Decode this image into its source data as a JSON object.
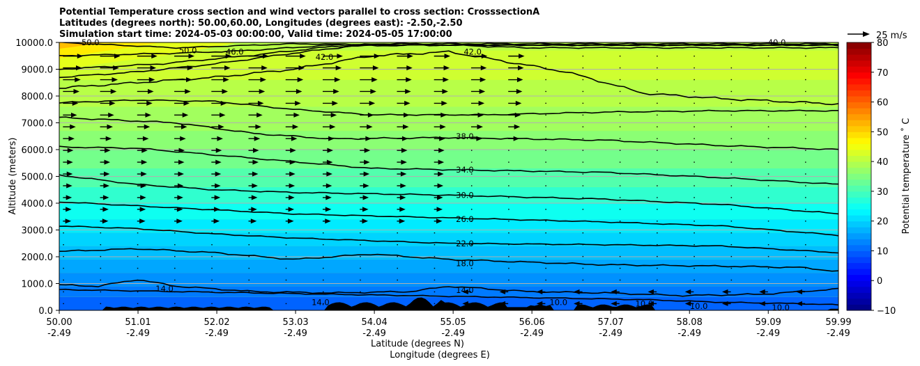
{
  "chart_data": {
    "type": "contour",
    "title_lines": [
      "Potential Temperature cross section and wind vectors parallel to cross section: CrosssectionA",
      "Latitudes (degrees north): 50.00,60.00, Longitudes (degrees east): -2.50,-2.50",
      "Simulation start time: 2024-05-03 00:00:00, Valid time: 2024-05-05 17:00:00"
    ],
    "xlabel_lat": "Latitude (degrees N)",
    "xlabel_lon": "Longitude (degrees E)",
    "ylabel": "Altitude (meters)",
    "x_ticks": [
      {
        "lat": "50.00",
        "lon": "-2.49"
      },
      {
        "lat": "51.01",
        "lon": "-2.49"
      },
      {
        "lat": "52.02",
        "lon": "-2.49"
      },
      {
        "lat": "53.03",
        "lon": "-2.49"
      },
      {
        "lat": "54.04",
        "lon": "-2.49"
      },
      {
        "lat": "55.05",
        "lon": "-2.49"
      },
      {
        "lat": "56.06",
        "lon": "-2.49"
      },
      {
        "lat": "57.07",
        "lon": "-2.49"
      },
      {
        "lat": "58.08",
        "lon": "-2.49"
      },
      {
        "lat": "59.09",
        "lon": "-2.49"
      },
      {
        "lat": "59.99",
        "lon": "-2.49"
      }
    ],
    "y_ticks": [
      "0.0",
      "1000.0",
      "2000.0",
      "3000.0",
      "4000.0",
      "5000.0",
      "6000.0",
      "7000.0",
      "8000.0",
      "9000.0",
      "10000.0"
    ],
    "xlim": [
      50.0,
      59.99
    ],
    "ylim": [
      0,
      10000
    ],
    "grid": "horizontal",
    "colorbar": {
      "label": "Potential temperature $^\\circ$C",
      "label_display": "Potential temperature ˚ C",
      "range": [
        -10,
        80
      ],
      "ticks": [
        "80",
        "70",
        "60",
        "50",
        "40",
        "30",
        "20",
        "10",
        "0",
        "−10"
      ]
    },
    "quiver_key": {
      "label": "25 m/s"
    },
    "contour_labels": [
      {
        "text": "50.0",
        "lat": 50.4,
        "alt": 10000
      },
      {
        "text": "50.0",
        "lat": 51.65,
        "alt": 9700
      },
      {
        "text": "46.0",
        "lat": 52.25,
        "alt": 9650
      },
      {
        "text": "42.0",
        "lat": 53.4,
        "alt": 9450
      },
      {
        "text": "42.0",
        "lat": 55.3,
        "alt": 9650
      },
      {
        "text": "40.0",
        "lat": 59.2,
        "alt": 10000
      },
      {
        "text": "38.0",
        "lat": 55.2,
        "alt": 6500
      },
      {
        "text": "34.0",
        "lat": 55.2,
        "alt": 5250
      },
      {
        "text": "30.0",
        "lat": 55.2,
        "alt": 4300
      },
      {
        "text": "26.0",
        "lat": 55.2,
        "alt": 3400
      },
      {
        "text": "22.0",
        "lat": 55.2,
        "alt": 2500
      },
      {
        "text": "18.0",
        "lat": 55.2,
        "alt": 1750
      },
      {
        "text": "14.0",
        "lat": 51.35,
        "alt": 800
      },
      {
        "text": "14.0",
        "lat": 53.35,
        "alt": 300
      },
      {
        "text": "14.0",
        "lat": 55.2,
        "alt": 750
      },
      {
        "text": "10.0",
        "lat": 56.4,
        "alt": 300
      },
      {
        "text": "10.0",
        "lat": 57.5,
        "alt": 250
      },
      {
        "text": "10.0",
        "lat": 58.2,
        "alt": 150
      },
      {
        "text": "10.0",
        "lat": 59.25,
        "alt": 100
      }
    ]
  }
}
